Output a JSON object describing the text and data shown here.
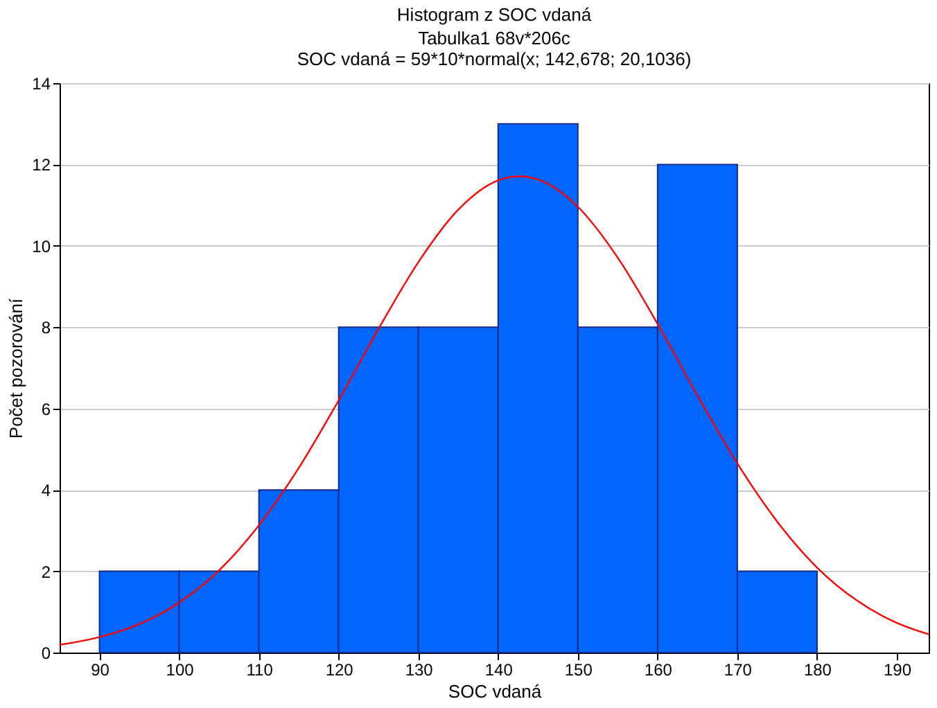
{
  "chart_data": {
    "type": "histogram",
    "title": "Histogram z SOC vdaná",
    "subtitle": "Tabulka1 68v*206c",
    "annotations": [
      "SOC vdaná = 59*10*normal(x; 142,678; 20,1036)"
    ],
    "xlabel": "SOC vdaná",
    "ylabel": "Počet pozorování",
    "bins": [
      90,
      100,
      110,
      120,
      130,
      140,
      150,
      160,
      170,
      180
    ],
    "values": [
      2,
      2,
      4,
      8,
      8,
      13,
      8,
      12,
      2
    ],
    "color": "#0066ff",
    "series": [
      {
        "type": "line",
        "color": "#ff0000",
        "x": [
          85,
          90,
          95,
          100,
          105,
          110,
          115,
          120,
          125,
          130,
          135,
          140,
          142.678,
          145,
          150,
          155,
          160,
          165,
          170,
          175,
          180,
          185,
          190,
          194
        ],
        "values": [
          0.19,
          0.38,
          0.7,
          1.23,
          2.02,
          3.13,
          4.54,
          6.2,
          7.96,
          9.6,
          10.89,
          11.61,
          11.71,
          11.63,
          10.96,
          9.71,
          8.08,
          6.32,
          4.65,
          3.22,
          2.09,
          1.28,
          0.73,
          0.45
        ]
      }
    ],
    "xlim": [
      85,
      194
    ],
    "xticks": [
      90,
      100,
      110,
      120,
      130,
      140,
      150,
      160,
      170,
      180,
      190
    ],
    "ylim": [
      0,
      14
    ],
    "yticks": [
      0,
      2,
      4,
      6,
      8,
      10,
      12,
      14
    ],
    "grid": "y"
  }
}
